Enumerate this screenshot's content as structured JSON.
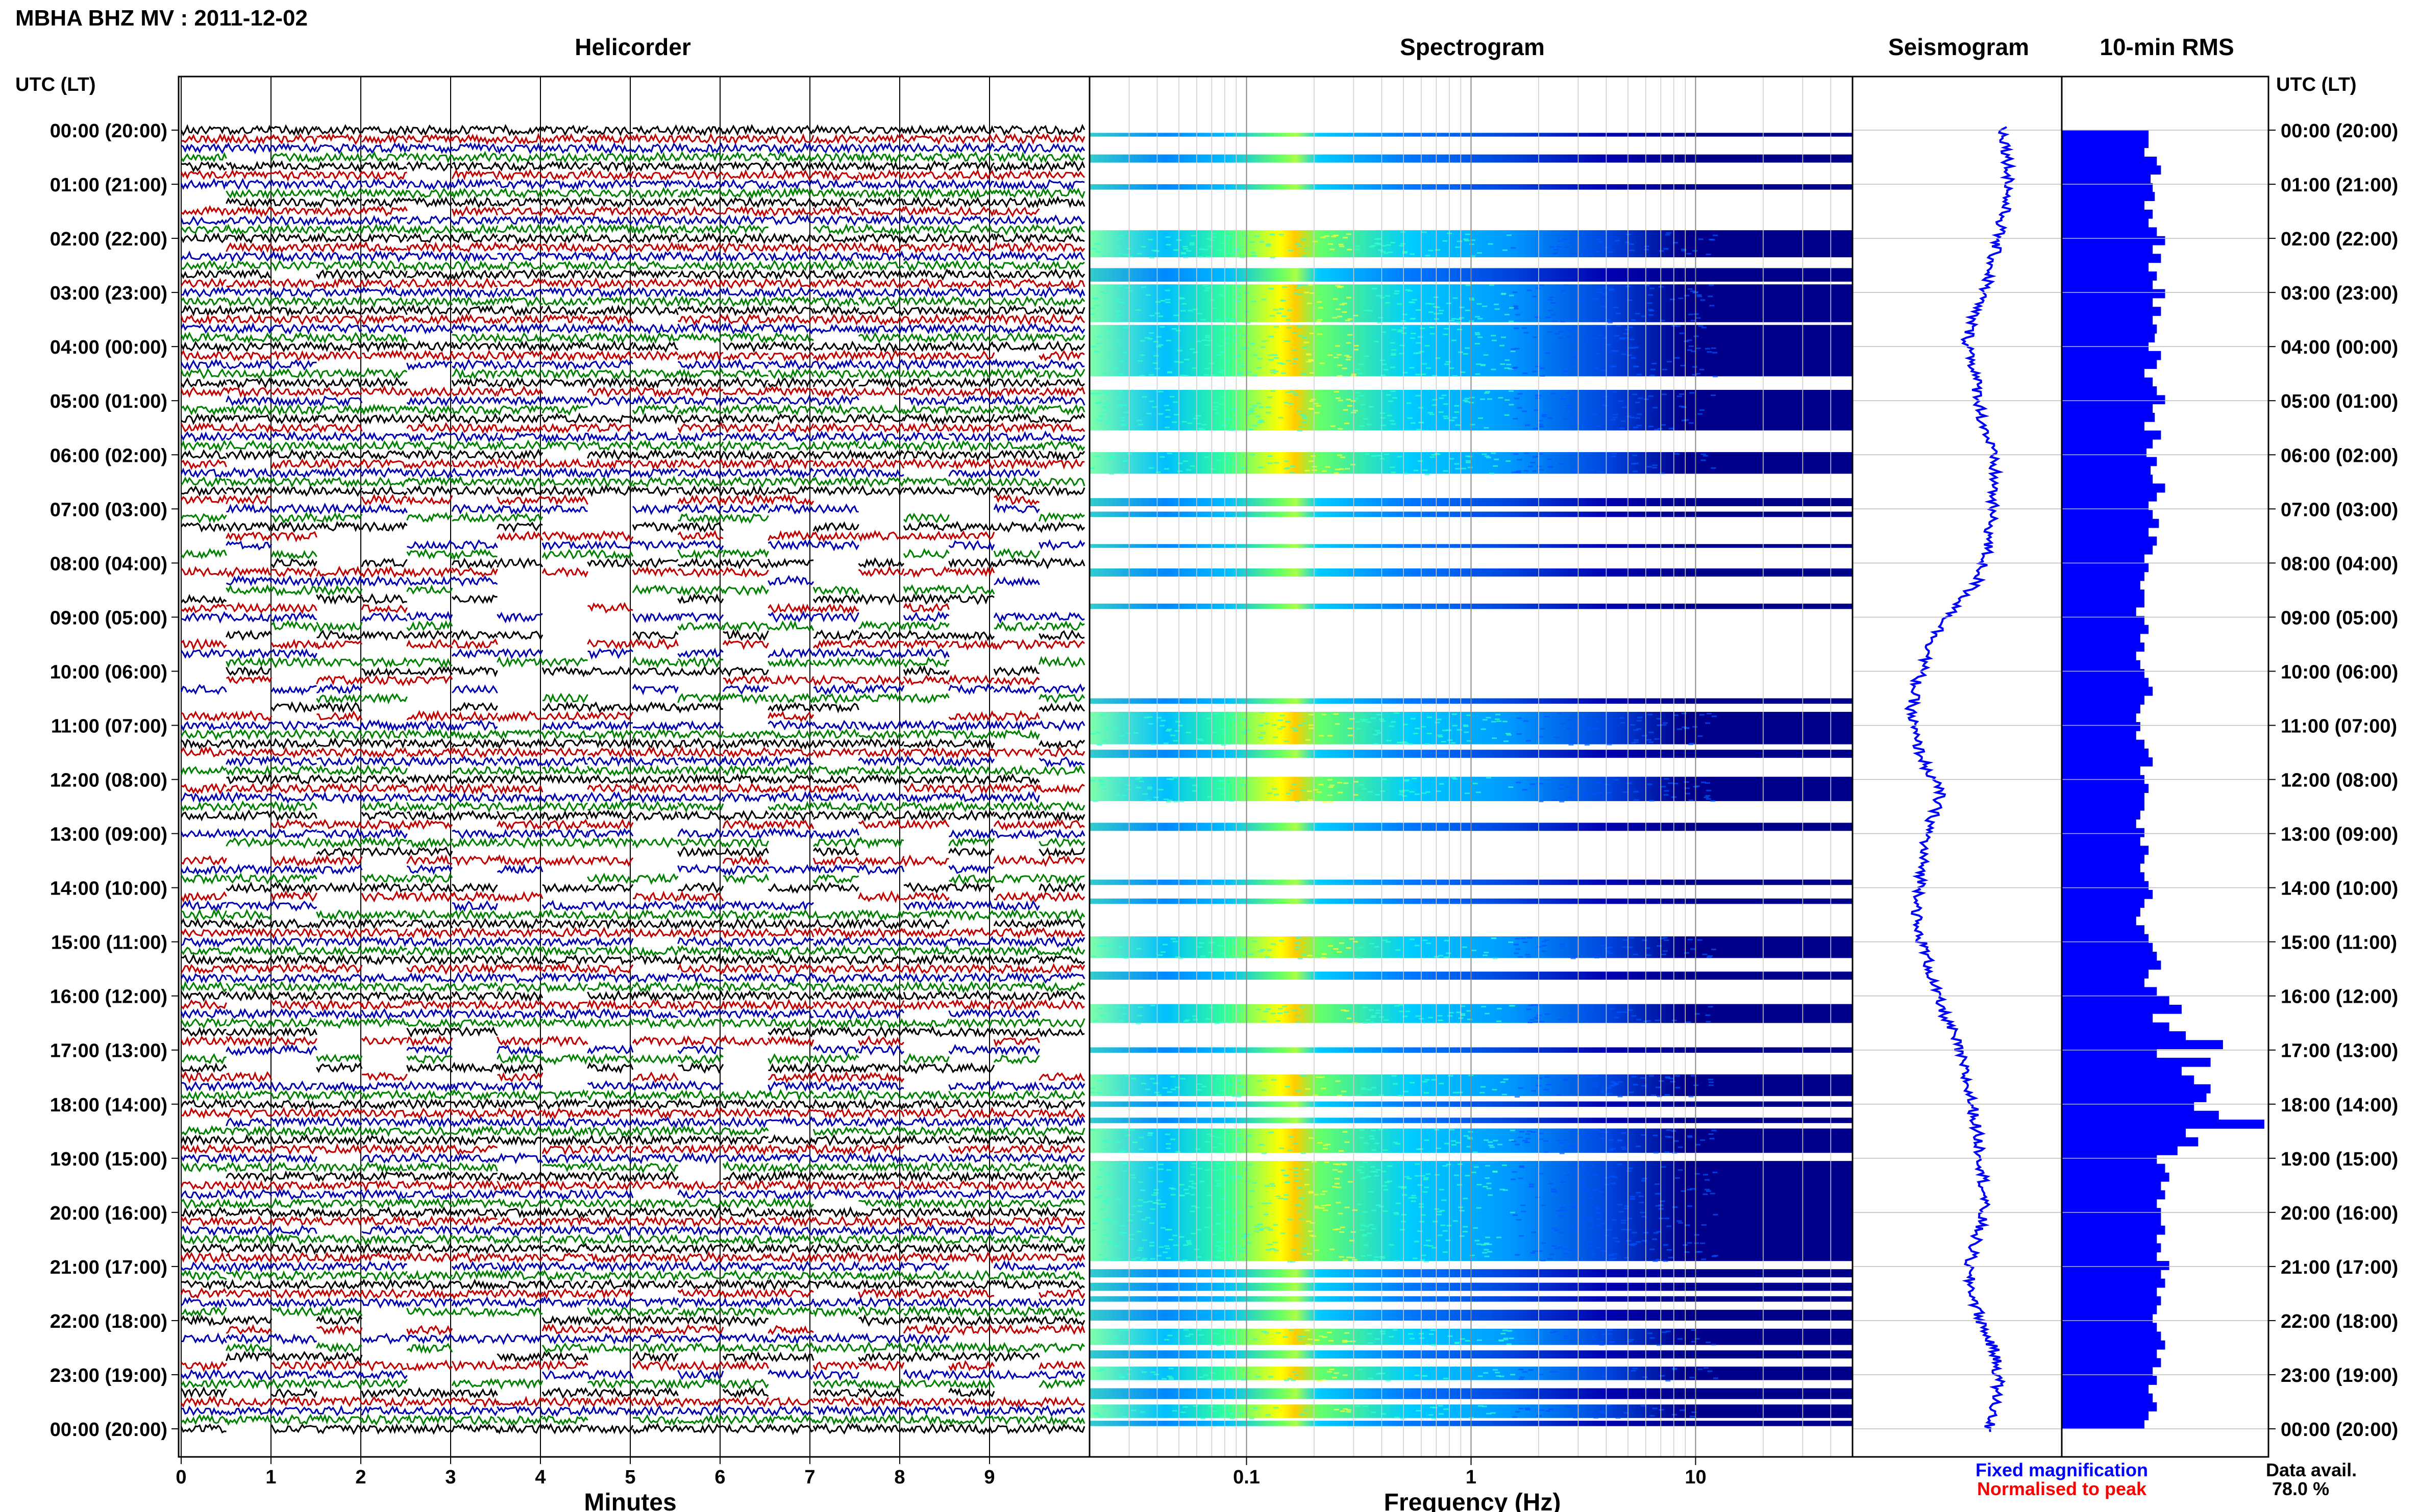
{
  "header": {
    "station_title": "MBHA BHZ MV : 2011-12-02"
  },
  "panels": {
    "helicorder": "Helicorder",
    "spectrogram": "Spectrogram",
    "seismogram": "Seismogram",
    "rms": "10-min RMS"
  },
  "axis": {
    "time_header_left": "UTC (LT)",
    "time_header_right": "UTC (LT)",
    "x_label_helicorder": "Minutes",
    "x_label_spectrogram": "Frequency (Hz)"
  },
  "footer": {
    "fixed_magnification": "Fixed magnification",
    "normalised_to_peak": "Normalised to peak",
    "data_avail_label": "Data avail.",
    "data_avail_value": "78.0 %"
  },
  "colors": {
    "trace_colors": [
      "#000000",
      "#c00000",
      "#0000b0",
      "#008000"
    ],
    "fixed_magnification": "#0000ff",
    "normalised_to_peak": "#ff0000",
    "rms_bar": "#0000ff",
    "seismogram": "#0000ff",
    "spectrogram_background": "#00008b"
  },
  "chart_data": [
    {
      "type": "heatmap",
      "panel": "helicorder",
      "y_tick_labels": [
        "00:00 (20:00)",
        "01:00 (21:00)",
        "02:00 (22:00)",
        "03:00 (23:00)",
        "04:00 (00:00)",
        "05:00 (01:00)",
        "06:00 (02:00)",
        "07:00 (03:00)",
        "08:00 (04:00)",
        "09:00 (05:00)",
        "10:00 (06:00)",
        "11:00 (07:00)",
        "12:00 (08:00)",
        "13:00 (09:00)",
        "14:00 (10:00)",
        "15:00 (11:00)",
        "16:00 (12:00)",
        "17:00 (13:00)",
        "18:00 (14:00)",
        "19:00 (15:00)",
        "20:00 (16:00)",
        "21:00 (17:00)",
        "22:00 (18:00)",
        "23:00 (19:00)",
        "00:00 (20:00)"
      ],
      "x_ticks": [
        0,
        1,
        2,
        3,
        4,
        5,
        6,
        7,
        8,
        9
      ],
      "xlim": [
        0,
        10
      ],
      "xlabel": "Minutes",
      "lines_per_hour": 6,
      "data_availability_percent": 78.0
    },
    {
      "type": "heatmap",
      "panel": "spectrogram",
      "x_scale": "log",
      "xlim": [
        0.02,
        50
      ],
      "x_ticks": [
        0.1,
        1,
        10
      ],
      "x_tick_labels": [
        "0.1",
        "1",
        "10"
      ],
      "xlabel": "Frequency (Hz)",
      "dominant_band_hz": [
        0.18,
        0.3
      ],
      "colormap": "jet"
    },
    {
      "type": "line",
      "panel": "seismogram",
      "description_level": "long-period drift over 24 h",
      "x_center_offsets": [
        0.72,
        0.74,
        0.75,
        0.73,
        0.7,
        0.67,
        0.64,
        0.58,
        0.55,
        0.58,
        0.6,
        0.62,
        0.66,
        0.68,
        0.67,
        0.66,
        0.64,
        0.6,
        0.5,
        0.4,
        0.35,
        0.3,
        0.28,
        0.3,
        0.35,
        0.42,
        0.38,
        0.34,
        0.33,
        0.32,
        0.3,
        0.35,
        0.38,
        0.42,
        0.48,
        0.52,
        0.55,
        0.58,
        0.6,
        0.62,
        0.63,
        0.62,
        0.58,
        0.55,
        0.58,
        0.62,
        0.68,
        0.7,
        0.68,
        0.65
      ]
    },
    {
      "type": "bar",
      "panel": "10-min RMS",
      "bin_minutes": 10,
      "relative_values": [
        0.42,
        0.42,
        0.4,
        0.46,
        0.48,
        0.43,
        0.44,
        0.45,
        0.4,
        0.44,
        0.42,
        0.46,
        0.5,
        0.44,
        0.48,
        0.42,
        0.46,
        0.44,
        0.5,
        0.44,
        0.48,
        0.44,
        0.46,
        0.45,
        0.42,
        0.48,
        0.46,
        0.4,
        0.44,
        0.46,
        0.5,
        0.44,
        0.45,
        0.4,
        0.48,
        0.44,
        0.41,
        0.46,
        0.43,
        0.44,
        0.5,
        0.46,
        0.42,
        0.44,
        0.47,
        0.42,
        0.46,
        0.44,
        0.4,
        0.42,
        0.4,
        0.38,
        0.4,
        0.4,
        0.36,
        0.4,
        0.42,
        0.38,
        0.4,
        0.36,
        0.38,
        0.4,
        0.42,
        0.44,
        0.4,
        0.38,
        0.36,
        0.38,
        0.36,
        0.4,
        0.42,
        0.44,
        0.38,
        0.4,
        0.42,
        0.4,
        0.4,
        0.38,
        0.36,
        0.4,
        0.38,
        0.42,
        0.4,
        0.38,
        0.4,
        0.42,
        0.44,
        0.4,
        0.38,
        0.36,
        0.4,
        0.42,
        0.44,
        0.46,
        0.48,
        0.42,
        0.4,
        0.46,
        0.52,
        0.58,
        0.44,
        0.52,
        0.6,
        0.78,
        0.46,
        0.72,
        0.58,
        0.64,
        0.72,
        0.7,
        0.64,
        0.76,
        0.98,
        0.6,
        0.66,
        0.56,
        0.46,
        0.5,
        0.52,
        0.48,
        0.5,
        0.46,
        0.48,
        0.48,
        0.5,
        0.46,
        0.48,
        0.46,
        0.52,
        0.48,
        0.5,
        0.46,
        0.48,
        0.46,
        0.44,
        0.46,
        0.48,
        0.5,
        0.46,
        0.48,
        0.44,
        0.46,
        0.42,
        0.44,
        0.46,
        0.42,
        0.4
      ]
    }
  ]
}
